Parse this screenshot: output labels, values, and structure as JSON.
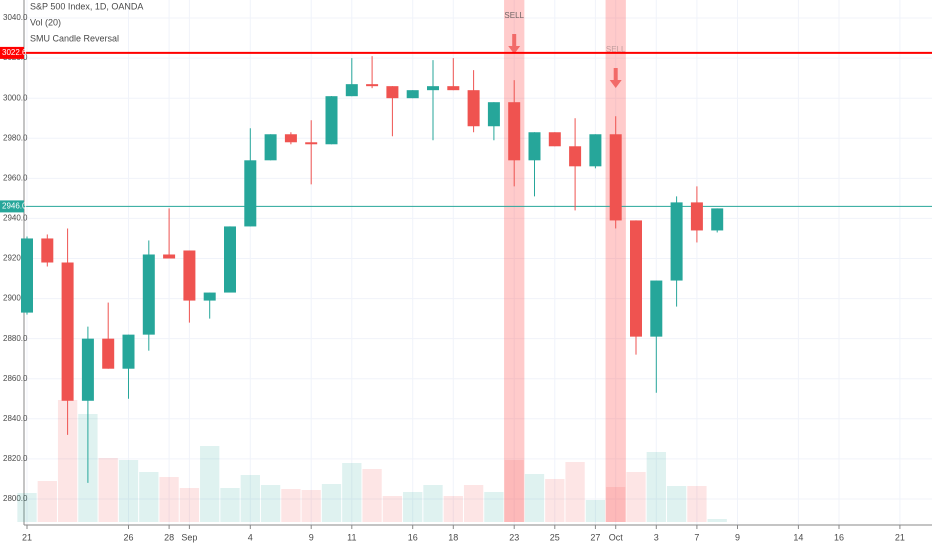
{
  "chart_data": {
    "type": "candlestick",
    "title": "S&P 500 Index, 1D, OANDA",
    "indicators": [
      "Vol (20)",
      "SMU Candle Reversal"
    ],
    "categories": [
      "21",
      null,
      null,
      null,
      null,
      "26",
      null,
      "28",
      "Sep",
      null,
      null,
      "4",
      null,
      null,
      "9",
      null,
      "11",
      null,
      null,
      "16",
      null,
      "18",
      null,
      null,
      "23",
      null,
      "25",
      null,
      "27",
      "Oct",
      null,
      "3",
      null,
      "7",
      null,
      "9",
      null,
      null,
      "14",
      null,
      "16",
      null,
      null,
      "21"
    ],
    "open": [
      2893,
      2930,
      2918,
      2849,
      2880,
      2865,
      2882,
      2922,
      2924,
      2899,
      2903,
      2936,
      2969,
      2982,
      2978,
      2977,
      3001,
      3007,
      3006,
      3000,
      3004,
      3006,
      3004,
      2986,
      2998,
      2969,
      2983,
      2976,
      2966,
      2982,
      2939,
      2881,
      2909,
      2948,
      2934,
      null,
      null,
      null,
      null,
      null,
      null,
      null,
      null,
      null
    ],
    "high": [
      2931,
      2932,
      2935,
      2886,
      2898,
      2882,
      2929,
      2945,
      2924,
      2903,
      2936,
      2985,
      2982,
      2983,
      2989,
      3001,
      3020,
      3021,
      3006,
      3004,
      3019,
      3020,
      3014,
      2998,
      3009,
      2983,
      2983,
      2990,
      2982,
      2991,
      2939,
      2909,
      2951,
      2956,
      2945,
      null,
      null,
      null,
      null,
      null,
      null,
      null,
      null,
      null
    ],
    "low": [
      2892,
      2916,
      2832,
      2808,
      2865,
      2850,
      2874,
      2920,
      2888,
      2890,
      2903,
      2936,
      2969,
      2977,
      2957,
      2977,
      3001,
      3005,
      2981,
      3000,
      2979,
      3004,
      2983,
      2979,
      2956,
      2951,
      2976,
      2944,
      2965,
      2935,
      2872,
      2853,
      2896,
      2928,
      2933,
      null,
      null,
      null,
      null,
      null,
      null,
      null,
      null,
      null
    ],
    "close": [
      2930,
      2918,
      2849,
      2880,
      2865,
      2882,
      2922,
      2920,
      2899,
      2903,
      2936,
      2969,
      2982,
      2978,
      2977,
      3001,
      3007,
      3006,
      3000,
      3004,
      3006,
      3004,
      2986,
      2998,
      2969,
      2983,
      2976,
      2966,
      2982,
      2939,
      2881,
      2909,
      2948,
      2934,
      2945,
      null,
      null,
      null,
      null,
      null,
      null,
      null,
      null,
      null
    ],
    "volume": {
      "values": [
        29,
        41,
        122,
        108,
        64,
        62,
        50,
        45,
        34,
        76,
        34,
        47,
        37,
        33,
        32,
        38,
        59,
        53,
        26,
        30,
        37,
        26,
        37,
        30,
        62,
        48,
        43,
        60,
        22,
        35,
        50,
        70,
        36,
        36,
        3,
        null,
        null,
        null,
        null,
        null,
        null,
        null,
        null,
        null
      ],
      "ylim": [
        0,
        522
      ]
    },
    "signals": [
      null,
      null,
      null,
      null,
      null,
      null,
      null,
      null,
      null,
      null,
      null,
      null,
      null,
      null,
      null,
      null,
      null,
      null,
      null,
      null,
      null,
      null,
      null,
      null,
      "SELL",
      null,
      null,
      null,
      null,
      "SELL",
      null,
      null,
      null,
      null,
      null,
      null,
      null,
      null,
      null,
      null,
      null,
      null,
      null,
      null
    ],
    "up_color": "#26a69a",
    "down_color": "#ef5350",
    "ylim": [
      2788.5,
      3049
    ],
    "yticks": [
      {
        "value": 2800,
        "label": "2800.0"
      },
      {
        "value": 2820,
        "label": "2820.0"
      },
      {
        "value": 2840,
        "label": "2840.0"
      },
      {
        "value": 2860,
        "label": "2860.0"
      },
      {
        "value": 2880,
        "label": "2880.0"
      },
      {
        "value": 2900,
        "label": "2900.0"
      },
      {
        "value": 2920,
        "label": "2920.0"
      },
      {
        "value": 2940,
        "label": "2940.0"
      },
      {
        "value": 2960,
        "label": "2960.0"
      },
      {
        "value": 2980,
        "label": "2980.0"
      },
      {
        "value": 3000,
        "label": "3000.0"
      },
      {
        "value": 3020,
        "label": "3020.0"
      },
      {
        "value": 3040,
        "label": "3040.0"
      }
    ],
    "hlines": [
      {
        "value": 3022.6,
        "label": "3022.6",
        "color": "#ff0000"
      },
      {
        "value": 2946,
        "label": "2946.0",
        "color": "#26a69a"
      }
    ],
    "grid": true
  }
}
